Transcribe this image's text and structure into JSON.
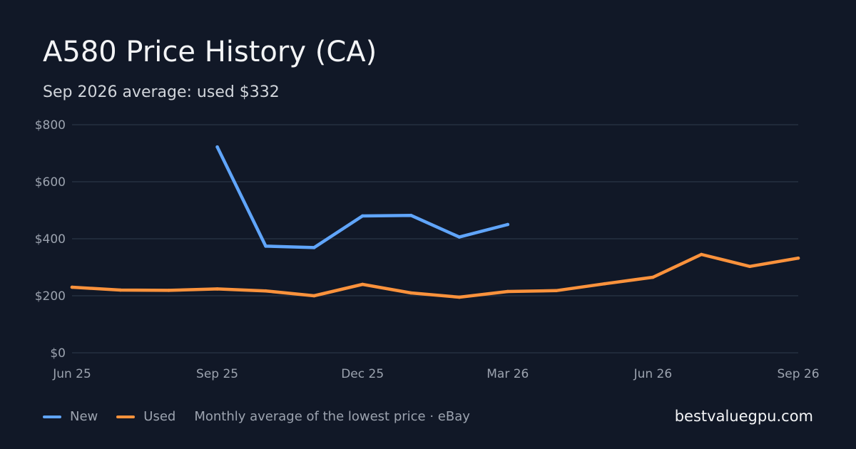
{
  "header": {
    "title": "A580 Price History (CA)",
    "subtitle": "Sep 2026 average: used $332"
  },
  "legend": {
    "new_label": "New",
    "used_label": "Used",
    "note": "Monthly average of the lowest price · eBay"
  },
  "site": "bestvaluegpu.com",
  "colors": {
    "new": "#60a5fa",
    "used": "#fb923c",
    "grid": "#263041",
    "tick": "#9ca3af"
  },
  "chart_data": {
    "type": "line",
    "x": [
      "2025-06",
      "2025-07",
      "2025-08",
      "2025-09",
      "2025-10",
      "2025-11",
      "2025-12",
      "2026-01",
      "2026-02",
      "2026-03",
      "2026-04",
      "2026-05",
      "2026-06",
      "2026-07",
      "2026-08",
      "2026-09"
    ],
    "x_ticks": [
      {
        "x": "2025-06",
        "label": "Jun 25"
      },
      {
        "x": "2025-09",
        "label": "Sep 25"
      },
      {
        "x": "2025-12",
        "label": "Dec 25"
      },
      {
        "x": "2026-03",
        "label": "Mar 26"
      },
      {
        "x": "2026-06",
        "label": "Jun 26"
      },
      {
        "x": "2026-09",
        "label": "Sep 26"
      }
    ],
    "y_ticks": [
      0,
      200,
      400,
      600,
      800
    ],
    "y_tick_labels": [
      "$0",
      "$200",
      "$400",
      "$600",
      "$800"
    ],
    "ylim": [
      0,
      800
    ],
    "grid": true,
    "series": [
      {
        "name": "New",
        "color": "#60a5fa",
        "values": [
          null,
          null,
          null,
          722,
          374,
          369,
          480,
          482,
          406,
          450,
          null,
          null,
          null,
          null,
          null,
          null
        ]
      },
      {
        "name": "Used",
        "color": "#fb923c",
        "values": [
          230,
          220,
          219,
          224,
          217,
          200,
          240,
          210,
          195,
          215,
          218,
          242,
          265,
          345,
          303,
          332
        ]
      }
    ]
  }
}
